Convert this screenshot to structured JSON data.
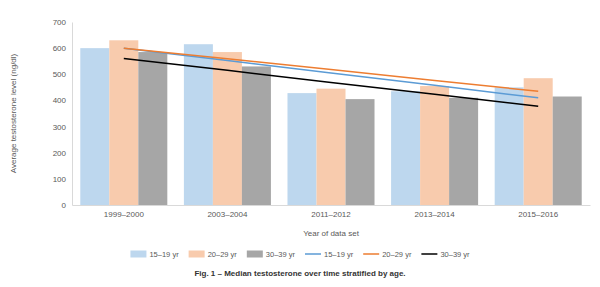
{
  "chart_data": {
    "type": "bar",
    "title": "Fig. 1 – Median testosterone over time stratified by age.",
    "x_label": "Year of data set",
    "y_label": "Average testosterone level (ng/dl)",
    "categories": [
      "1999–2000",
      "2003–2004",
      "2011–2012",
      "2013–2014",
      "2015–2016"
    ],
    "series": [
      {
        "name": "15–19 yr",
        "type": "bar",
        "color": "#bdd7ee",
        "values": [
          600,
          615,
          428,
          435,
          450
        ]
      },
      {
        "name": "20–29 yr",
        "type": "bar",
        "color": "#f8cbad",
        "values": [
          630,
          585,
          445,
          455,
          485
        ]
      },
      {
        "name": "30–39 yr",
        "type": "bar",
        "color": "#a6a6a6",
        "values": [
          585,
          530,
          405,
          410,
          415
        ]
      },
      {
        "name": "15–19 yr",
        "type": "line",
        "color": "#5b9bd5",
        "line_style": "solid",
        "values": [
          600,
          553,
          505,
          458,
          410
        ]
      },
      {
        "name": "20–29 yr",
        "type": "line",
        "color": "#ed7d31",
        "line_style": "solid",
        "values": [
          600,
          559,
          518,
          476,
          435
        ]
      },
      {
        "name": "30–39 yr",
        "type": "line",
        "color": "#000000",
        "line_style": "solid",
        "values": [
          560,
          515,
          469,
          424,
          378
        ]
      }
    ],
    "ylim": [
      0,
      700
    ],
    "yticks": [
      0,
      100,
      200,
      300,
      400,
      500,
      600,
      700
    ],
    "grid": false,
    "legend": "bottom"
  }
}
